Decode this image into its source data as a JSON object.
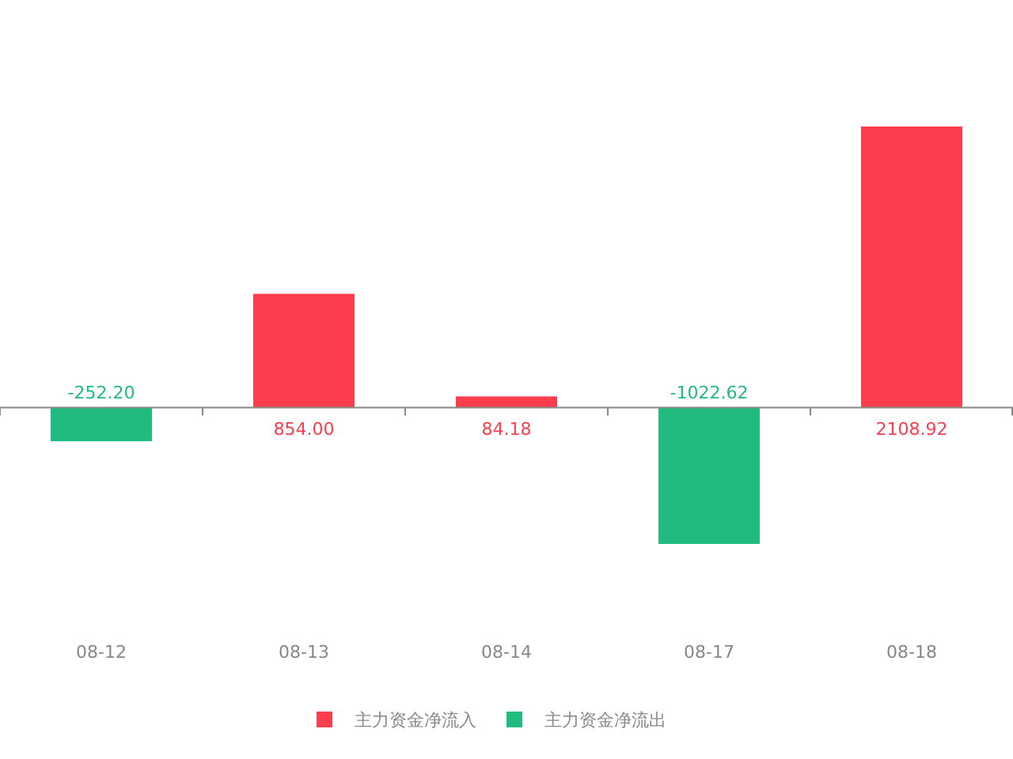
{
  "chart_data": {
    "type": "bar",
    "stacked": true,
    "legend": "bottom",
    "categories": [
      "08-12",
      "08-13",
      "08-14",
      "08-17",
      "08-18"
    ],
    "series": [
      {
        "name": "主力资金净流入",
        "color": "#fa3e4d",
        "values": [
          null,
          854.0,
          84.18,
          null,
          2108.92
        ],
        "value_labels": [
          null,
          "854.00",
          "84.18",
          null,
          "2108.92"
        ]
      },
      {
        "name": "主力资金净流出",
        "color": "#21bb7e",
        "values": [
          -252.2,
          null,
          null,
          -1022.62,
          null
        ],
        "value_labels": [
          "-252.20",
          null,
          null,
          "-1022.62",
          null
        ]
      }
    ]
  }
}
